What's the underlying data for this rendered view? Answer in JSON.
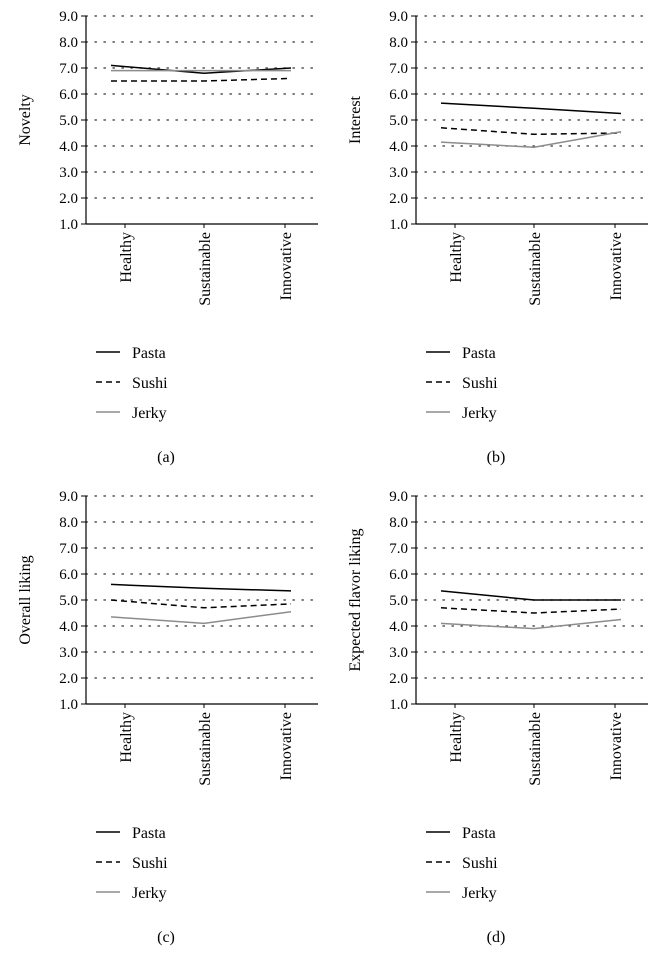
{
  "style": {
    "series_colors": {
      "Pasta": "#000000",
      "Sushi": "#000000",
      "Jerky": "#8c8c8c"
    },
    "series_dash": {
      "Pasta": "solid",
      "Sushi": "dashed",
      "Jerky": "solid"
    },
    "grid_color": "#555555"
  },
  "chart_data": [
    {
      "type": "line",
      "panel_label": "(a)",
      "ylabel": "Novelty",
      "ylim": [
        1.0,
        9.0
      ],
      "yticks": [
        "1.0",
        "2.0",
        "3.0",
        "4.0",
        "5.0",
        "6.0",
        "7.0",
        "8.0",
        "9.0"
      ],
      "categories": [
        "Healthy",
        "Sustainable",
        "Innovative"
      ],
      "grid": "dotted-horizontal",
      "legend": "bottom",
      "series": [
        {
          "name": "Pasta",
          "values": [
            7.1,
            6.8,
            7.0
          ]
        },
        {
          "name": "Sushi",
          "values": [
            6.5,
            6.5,
            6.6
          ]
        },
        {
          "name": "Jerky",
          "values": [
            6.9,
            6.9,
            6.9
          ]
        }
      ]
    },
    {
      "type": "line",
      "panel_label": "(b)",
      "ylabel": "Interest",
      "ylim": [
        1.0,
        9.0
      ],
      "yticks": [
        "1.0",
        "2.0",
        "3.0",
        "4.0",
        "5.0",
        "6.0",
        "7.0",
        "8.0",
        "9.0"
      ],
      "categories": [
        "Healthy",
        "Sustainable",
        "Innovative"
      ],
      "grid": "dotted-horizontal",
      "legend": "bottom",
      "series": [
        {
          "name": "Pasta",
          "values": [
            5.65,
            5.45,
            5.25
          ]
        },
        {
          "name": "Sushi",
          "values": [
            4.7,
            4.45,
            4.5
          ]
        },
        {
          "name": "Jerky",
          "values": [
            4.15,
            3.95,
            4.55
          ]
        }
      ]
    },
    {
      "type": "line",
      "panel_label": "(c)",
      "ylabel": "Overall liking",
      "ylim": [
        1.0,
        9.0
      ],
      "yticks": [
        "1.0",
        "2.0",
        "3.0",
        "4.0",
        "5.0",
        "6.0",
        "7.0",
        "8.0",
        "9.0"
      ],
      "categories": [
        "Healthy",
        "Sustainable",
        "Innovative"
      ],
      "grid": "dotted-horizontal",
      "legend": "bottom",
      "series": [
        {
          "name": "Pasta",
          "values": [
            5.6,
            5.45,
            5.35
          ]
        },
        {
          "name": "Sushi",
          "values": [
            5.0,
            4.7,
            4.85
          ]
        },
        {
          "name": "Jerky",
          "values": [
            4.35,
            4.1,
            4.55
          ]
        }
      ]
    },
    {
      "type": "line",
      "panel_label": "(d)",
      "ylabel": "Expected flavor liking",
      "ylim": [
        1.0,
        9.0
      ],
      "yticks": [
        "1.0",
        "2.0",
        "3.0",
        "4.0",
        "5.0",
        "6.0",
        "7.0",
        "8.0",
        "9.0"
      ],
      "categories": [
        "Healthy",
        "Sustainable",
        "Innovative"
      ],
      "grid": "dotted-horizontal",
      "legend": "bottom",
      "series": [
        {
          "name": "Pasta",
          "values": [
            5.35,
            5.0,
            5.0
          ]
        },
        {
          "name": "Sushi",
          "values": [
            4.7,
            4.5,
            4.65
          ]
        },
        {
          "name": "Jerky",
          "values": [
            4.1,
            3.9,
            4.25
          ]
        }
      ]
    }
  ]
}
